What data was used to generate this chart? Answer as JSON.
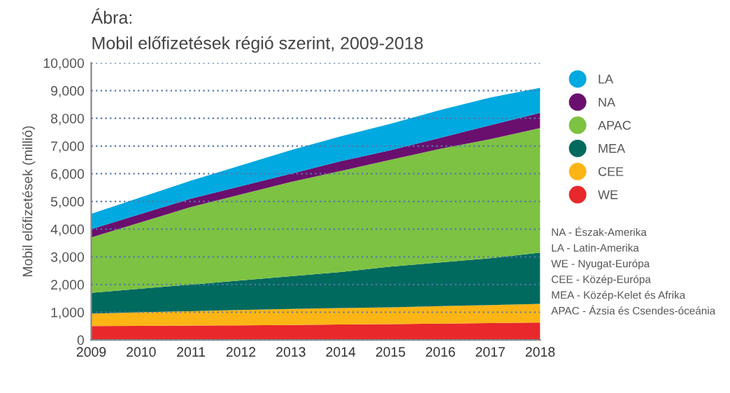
{
  "chart_data": {
    "type": "area",
    "stacked": true,
    "title": "Ábra:",
    "subtitle": "Mobil előfizetések régió szerint, 2009-2018",
    "ylabel": "Mobil előfizetések (millió)",
    "x": [
      2009,
      2010,
      2011,
      2012,
      2013,
      2014,
      2015,
      2016,
      2017,
      2018
    ],
    "series": [
      {
        "name": "WE",
        "color": "#e8282b",
        "values": [
          500,
          510,
          520,
          530,
          540,
          560,
          570,
          590,
          610,
          630
        ]
      },
      {
        "name": "CEE",
        "color": "#fdb515",
        "values": [
          450,
          490,
          520,
          550,
          580,
          590,
          610,
          630,
          650,
          670
        ]
      },
      {
        "name": "MEA",
        "color": "#006a5f",
        "values": [
          750,
          850,
          960,
          1070,
          1180,
          1300,
          1470,
          1580,
          1690,
          1850
        ]
      },
      {
        "name": "APAC",
        "color": "#7dc242",
        "values": [
          2000,
          2400,
          2800,
          3100,
          3400,
          3650,
          3850,
          4100,
          4300,
          4500
        ]
      },
      {
        "name": "NA",
        "color": "#6a0f6e",
        "values": [
          300,
          300,
          300,
          300,
          300,
          350,
          350,
          400,
          500,
          550
        ]
      },
      {
        "name": "LA",
        "color": "#00a9e0",
        "values": [
          550,
          600,
          650,
          750,
          850,
          900,
          950,
          1000,
          1000,
          900
        ]
      }
    ],
    "xlim": [
      2009,
      2018
    ],
    "xticks": [
      2009,
      2010,
      2011,
      2012,
      2013,
      2014,
      2015,
      2016,
      2017,
      2018
    ],
    "ylim": [
      0,
      10000
    ],
    "yticks": [
      {
        "value": 0,
        "label": "0"
      },
      {
        "value": 1000,
        "label": "1,000"
      },
      {
        "value": 2000,
        "label": "2,000"
      },
      {
        "value": 3000,
        "label": "3,000"
      },
      {
        "value": 4000,
        "label": "4,000"
      },
      {
        "value": 5000,
        "label": "5,000"
      },
      {
        "value": 6000,
        "label": "6,000"
      },
      {
        "value": 7000,
        "label": "7,000"
      },
      {
        "value": 8000,
        "label": "8,000"
      },
      {
        "value": 9000,
        "label": "9,000"
      },
      {
        "value": 10000,
        "label": "10,000"
      }
    ],
    "grid": "y",
    "legend": "right",
    "annotations": [
      "NA - Észak-Amerika",
      "LA - Latin-Amerika",
      "WE - Nyugat-Európa",
      "CEE - Közép-Európa",
      "MEA - Közép-Kelet és Afrika",
      "APAC - Ázsia és Csendes-óceánia"
    ]
  }
}
